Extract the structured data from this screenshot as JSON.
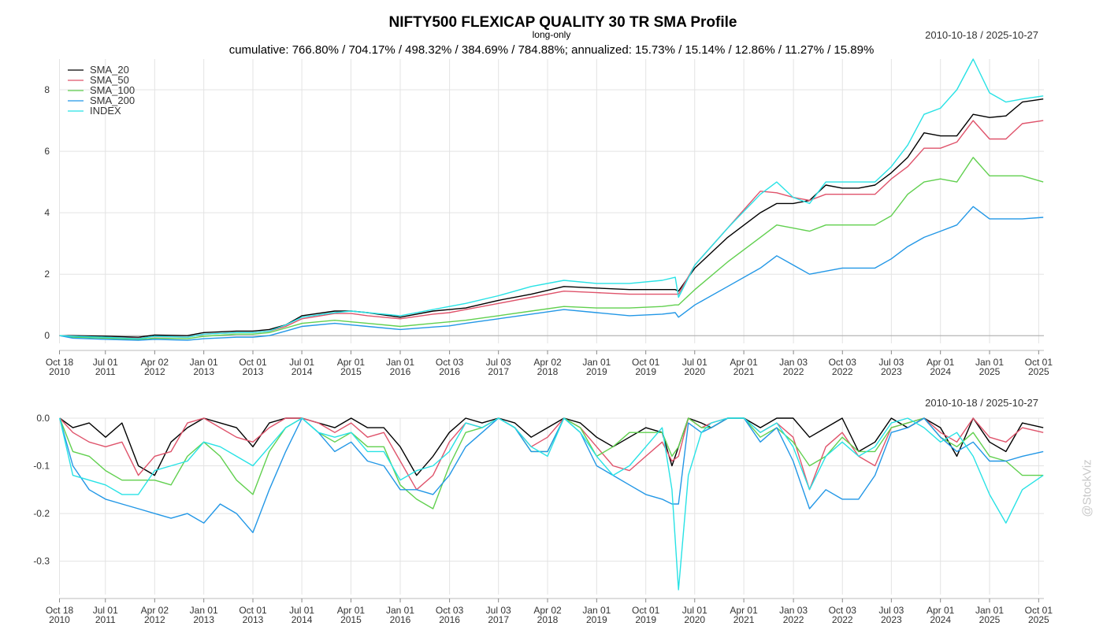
{
  "chart_data": [
    {
      "type": "line",
      "title": "NIFTY500 FLEXICAP QUALITY 30 TR SMA Profile",
      "subtitle": "long-only",
      "stats_text": "cumulative: 766.80% / 704.17% / 498.32% / 384.69% / 784.88%; annualized: 15.73% / 15.14% / 12.86% / 11.27% / 15.89%",
      "date_range": "2010-10-18 / 2025-10-27",
      "ylim": [
        -0.25,
        9.0
      ],
      "yticks": [
        0,
        2,
        4,
        6,
        8
      ],
      "grid": true,
      "legend_position": "top-left",
      "x": [
        2010.8,
        2011.0,
        2011.5,
        2012.0,
        2012.25,
        2012.75,
        2013.0,
        2013.5,
        2013.75,
        2014.0,
        2014.25,
        2014.5,
        2015.0,
        2015.25,
        2015.5,
        2016.0,
        2016.5,
        2016.75,
        2017.0,
        2017.5,
        2018.0,
        2018.5,
        2019.0,
        2019.5,
        2020.0,
        2020.2,
        2020.25,
        2020.5,
        2021.0,
        2021.5,
        2021.75,
        2022.0,
        2022.25,
        2022.5,
        2022.75,
        2023.0,
        2023.25,
        2023.5,
        2023.75,
        2024.0,
        2024.25,
        2024.5,
        2024.75,
        2025.0,
        2025.25,
        2025.5,
        2025.82
      ],
      "series": [
        {
          "name": "SMA_20",
          "color": "#000000",
          "values": [
            0,
            0,
            -0.02,
            -0.05,
            0.02,
            0.0,
            0.1,
            0.15,
            0.15,
            0.2,
            0.35,
            0.65,
            0.8,
            0.8,
            0.75,
            0.6,
            0.8,
            0.85,
            0.9,
            1.15,
            1.35,
            1.6,
            1.55,
            1.5,
            1.5,
            1.5,
            1.45,
            2.2,
            3.2,
            4.0,
            4.3,
            4.3,
            4.4,
            4.9,
            4.8,
            4.8,
            4.9,
            5.3,
            5.8,
            6.6,
            6.5,
            6.5,
            7.2,
            7.1,
            7.15,
            7.6,
            7.7
          ]
        },
        {
          "name": "SMA_50",
          "color": "#DF536B",
          "values": [
            0,
            -0.02,
            -0.05,
            -0.08,
            -0.03,
            -0.05,
            0.05,
            0.1,
            0.1,
            0.15,
            0.3,
            0.55,
            0.72,
            0.72,
            0.65,
            0.55,
            0.7,
            0.75,
            0.85,
            1.05,
            1.25,
            1.45,
            1.4,
            1.35,
            1.35,
            1.35,
            1.35,
            2.3,
            3.5,
            4.7,
            4.65,
            4.5,
            4.4,
            4.6,
            4.6,
            4.6,
            4.6,
            5.1,
            5.5,
            6.1,
            6.1,
            6.3,
            7.0,
            6.4,
            6.4,
            6.9,
            7.0
          ]
        },
        {
          "name": "SMA_100",
          "color": "#61D04F",
          "values": [
            0,
            -0.05,
            -0.08,
            -0.12,
            -0.08,
            -0.1,
            -0.02,
            0.05,
            0.05,
            0.1,
            0.25,
            0.4,
            0.5,
            0.45,
            0.4,
            0.3,
            0.4,
            0.45,
            0.5,
            0.65,
            0.8,
            0.95,
            0.9,
            0.9,
            0.95,
            1.0,
            1.0,
            1.5,
            2.4,
            3.2,
            3.6,
            3.5,
            3.4,
            3.6,
            3.6,
            3.6,
            3.6,
            3.9,
            4.6,
            5.0,
            5.1,
            5.0,
            5.8,
            5.2,
            5.2,
            5.2,
            5.0
          ]
        },
        {
          "name": "SMA_200",
          "color": "#2297E6",
          "values": [
            0,
            -0.08,
            -0.12,
            -0.15,
            -0.12,
            -0.15,
            -0.1,
            -0.05,
            -0.05,
            0.0,
            0.15,
            0.3,
            0.4,
            0.35,
            0.3,
            0.2,
            0.28,
            0.32,
            0.4,
            0.55,
            0.7,
            0.85,
            0.75,
            0.65,
            0.7,
            0.75,
            0.6,
            1.0,
            1.6,
            2.2,
            2.6,
            2.3,
            2.0,
            2.1,
            2.2,
            2.2,
            2.2,
            2.5,
            2.9,
            3.2,
            3.4,
            3.6,
            4.2,
            3.8,
            3.8,
            3.8,
            3.85
          ]
        },
        {
          "name": "INDEX",
          "color": "#28E2E5",
          "values": [
            0,
            -0.02,
            -0.05,
            -0.1,
            -0.02,
            -0.05,
            0.05,
            0.1,
            0.1,
            0.15,
            0.35,
            0.6,
            0.75,
            0.8,
            0.75,
            0.65,
            0.85,
            0.95,
            1.05,
            1.3,
            1.6,
            1.8,
            1.7,
            1.7,
            1.8,
            1.9,
            1.25,
            2.3,
            3.5,
            4.6,
            5.0,
            4.5,
            4.3,
            5.0,
            5.0,
            5.0,
            5.0,
            5.5,
            6.2,
            7.2,
            7.4,
            8.0,
            9.0,
            7.9,
            7.6,
            7.7,
            7.8
          ]
        }
      ]
    },
    {
      "type": "line",
      "date_range": "2010-10-18 / 2025-10-27",
      "ylim": [
        -0.37,
        0.0
      ],
      "yticks": [
        0.0,
        -0.1,
        -0.2,
        -0.3
      ],
      "ytick_labels": [
        "0.0",
        "-0.1",
        "-0.2",
        "-0.3"
      ],
      "grid": true,
      "x": [
        2010.8,
        2011.0,
        2011.25,
        2011.5,
        2011.75,
        2012.0,
        2012.25,
        2012.5,
        2012.75,
        2013.0,
        2013.25,
        2013.5,
        2013.75,
        2014.0,
        2014.25,
        2014.5,
        2014.75,
        2015.0,
        2015.25,
        2015.5,
        2015.75,
        2016.0,
        2016.25,
        2016.5,
        2016.75,
        2017.0,
        2017.25,
        2017.5,
        2017.75,
        2018.0,
        2018.25,
        2018.5,
        2018.75,
        2019.0,
        2019.25,
        2019.5,
        2019.75,
        2020.0,
        2020.15,
        2020.25,
        2020.4,
        2020.6,
        2020.75,
        2021.0,
        2021.25,
        2021.5,
        2021.75,
        2022.0,
        2022.25,
        2022.5,
        2022.75,
        2023.0,
        2023.25,
        2023.5,
        2023.75,
        2024.0,
        2024.25,
        2024.5,
        2024.75,
        2025.0,
        2025.25,
        2025.5,
        2025.82
      ],
      "series": [
        {
          "name": "SMA_20",
          "color": "#000000",
          "values": [
            0,
            -0.02,
            -0.01,
            -0.04,
            -0.01,
            -0.1,
            -0.12,
            -0.05,
            -0.02,
            0,
            -0.01,
            -0.02,
            -0.06,
            -0.01,
            0,
            0,
            -0.01,
            -0.02,
            0,
            -0.02,
            -0.02,
            -0.06,
            -0.12,
            -0.08,
            -0.03,
            0,
            -0.01,
            0,
            -0.01,
            -0.04,
            -0.02,
            0,
            -0.01,
            -0.04,
            -0.06,
            -0.04,
            -0.02,
            -0.03,
            -0.1,
            -0.06,
            0,
            -0.01,
            -0.02,
            0,
            0,
            -0.02,
            0,
            0,
            -0.04,
            -0.02,
            0,
            -0.07,
            -0.05,
            0,
            -0.02,
            0,
            -0.02,
            -0.08,
            0,
            -0.05,
            -0.07,
            -0.01,
            -0.02
          ]
        },
        {
          "name": "SMA_50",
          "color": "#DF536B",
          "values": [
            0,
            -0.03,
            -0.05,
            -0.06,
            -0.05,
            -0.12,
            -0.08,
            -0.07,
            -0.01,
            0,
            -0.02,
            -0.04,
            -0.05,
            -0.02,
            0,
            0,
            -0.01,
            -0.03,
            -0.01,
            -0.04,
            -0.03,
            -0.09,
            -0.15,
            -0.12,
            -0.05,
            -0.01,
            -0.02,
            0,
            -0.02,
            -0.06,
            -0.04,
            0,
            -0.02,
            -0.06,
            -0.1,
            -0.11,
            -0.08,
            -0.05,
            -0.09,
            -0.08,
            0,
            -0.02,
            -0.01,
            0,
            0,
            -0.03,
            -0.01,
            -0.04,
            -0.15,
            -0.06,
            -0.03,
            -0.08,
            -0.1,
            -0.02,
            -0.01,
            0,
            -0.03,
            -0.05,
            0,
            -0.04,
            -0.05,
            -0.02,
            -0.03
          ]
        },
        {
          "name": "SMA_100",
          "color": "#61D04F",
          "values": [
            0,
            -0.07,
            -0.08,
            -0.11,
            -0.13,
            -0.13,
            -0.13,
            -0.14,
            -0.08,
            -0.05,
            -0.08,
            -0.13,
            -0.16,
            -0.07,
            -0.02,
            0,
            -0.03,
            -0.05,
            -0.03,
            -0.06,
            -0.06,
            -0.14,
            -0.17,
            -0.19,
            -0.1,
            -0.03,
            -0.02,
            0,
            -0.02,
            -0.07,
            -0.07,
            0,
            -0.02,
            -0.08,
            -0.06,
            -0.03,
            -0.03,
            -0.03,
            -0.08,
            -0.06,
            0,
            -0.02,
            -0.02,
            0,
            0,
            -0.04,
            -0.02,
            -0.05,
            -0.1,
            -0.08,
            -0.04,
            -0.07,
            -0.07,
            -0.02,
            -0.01,
            0,
            -0.04,
            -0.06,
            -0.03,
            -0.08,
            -0.09,
            -0.12,
            -0.12
          ]
        },
        {
          "name": "SMA_200",
          "color": "#2297E6",
          "values": [
            0,
            -0.1,
            -0.15,
            -0.17,
            -0.18,
            -0.19,
            -0.2,
            -0.21,
            -0.2,
            -0.22,
            -0.18,
            -0.2,
            -0.24,
            -0.15,
            -0.07,
            0,
            -0.03,
            -0.07,
            -0.05,
            -0.09,
            -0.1,
            -0.15,
            -0.15,
            -0.16,
            -0.12,
            -0.06,
            -0.03,
            0,
            -0.02,
            -0.07,
            -0.07,
            0,
            -0.03,
            -0.1,
            -0.12,
            -0.14,
            -0.16,
            -0.17,
            -0.18,
            -0.18,
            -0.01,
            -0.03,
            -0.02,
            0,
            0,
            -0.05,
            -0.02,
            -0.09,
            -0.19,
            -0.15,
            -0.17,
            -0.17,
            -0.12,
            -0.03,
            -0.02,
            0,
            -0.04,
            -0.07,
            -0.05,
            -0.09,
            -0.09,
            -0.08,
            -0.07
          ]
        },
        {
          "name": "INDEX",
          "color": "#28E2E5",
          "values": [
            0,
            -0.12,
            -0.13,
            -0.14,
            -0.16,
            -0.16,
            -0.11,
            -0.1,
            -0.09,
            -0.05,
            -0.06,
            -0.08,
            -0.1,
            -0.06,
            -0.02,
            0,
            -0.03,
            -0.04,
            -0.03,
            -0.07,
            -0.07,
            -0.13,
            -0.11,
            -0.1,
            -0.07,
            -0.01,
            -0.02,
            0,
            -0.02,
            -0.06,
            -0.08,
            0,
            -0.03,
            -0.08,
            -0.12,
            -0.1,
            -0.06,
            -0.02,
            -0.15,
            -0.36,
            -0.12,
            -0.03,
            -0.01,
            0,
            0,
            -0.03,
            -0.01,
            -0.06,
            -0.15,
            -0.08,
            -0.05,
            -0.08,
            -0.06,
            -0.01,
            0,
            -0.02,
            -0.05,
            -0.03,
            -0.08,
            -0.16,
            -0.22,
            -0.15,
            -0.12
          ]
        }
      ]
    }
  ],
  "xaxis_ticks": [
    {
      "x": 2010.796,
      "line1": "Oct 18",
      "line2": "2010"
    },
    {
      "x": 2011.497,
      "line1": "Jul 01",
      "line2": "2011"
    },
    {
      "x": 2012.25,
      "line1": "Apr 02",
      "line2": "2012"
    },
    {
      "x": 2013.0,
      "line1": "Jan 01",
      "line2": "2013"
    },
    {
      "x": 2013.75,
      "line1": "Oct 01",
      "line2": "2013"
    },
    {
      "x": 2014.497,
      "line1": "Jul 01",
      "line2": "2014"
    },
    {
      "x": 2015.247,
      "line1": "Apr 01",
      "line2": "2015"
    },
    {
      "x": 2016.0,
      "line1": "Jan 01",
      "line2": "2016"
    },
    {
      "x": 2016.753,
      "line1": "Oct 03",
      "line2": "2016"
    },
    {
      "x": 2017.5,
      "line1": "Jul 03",
      "line2": "2017"
    },
    {
      "x": 2018.25,
      "line1": "Apr 02",
      "line2": "2018"
    },
    {
      "x": 2019.0,
      "line1": "Jan 01",
      "line2": "2019"
    },
    {
      "x": 2019.75,
      "line1": "Oct 01",
      "line2": "2019"
    },
    {
      "x": 2020.497,
      "line1": "Jul 01",
      "line2": "2020"
    },
    {
      "x": 2021.247,
      "line1": "Apr 01",
      "line2": "2021"
    },
    {
      "x": 2022.005,
      "line1": "Jan 03",
      "line2": "2022"
    },
    {
      "x": 2022.753,
      "line1": "Oct 03",
      "line2": "2022"
    },
    {
      "x": 2023.5,
      "line1": "Jul 03",
      "line2": "2023"
    },
    {
      "x": 2024.25,
      "line1": "Apr 01",
      "line2": "2024"
    },
    {
      "x": 2025.0,
      "line1": "Jan 01",
      "line2": "2025"
    },
    {
      "x": 2025.75,
      "line1": "Oct 01",
      "line2": "2025"
    }
  ],
  "watermark": "@StockViz"
}
